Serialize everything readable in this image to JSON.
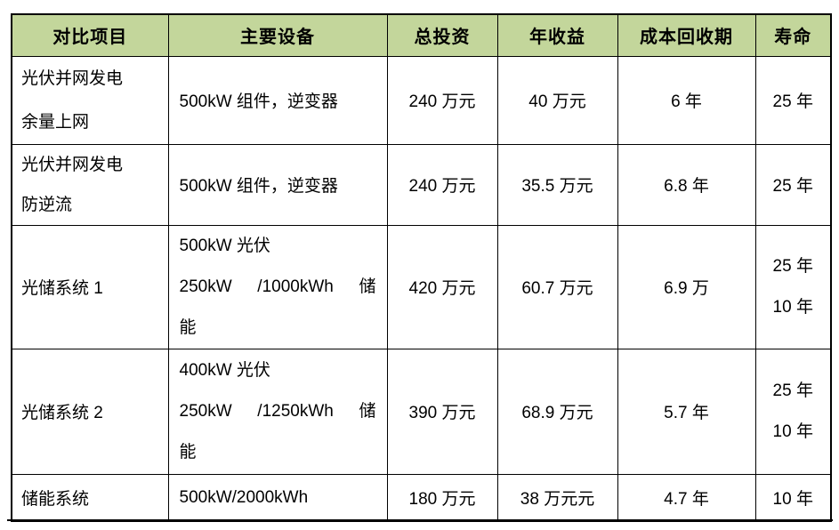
{
  "table": {
    "header_bg": "#c3d69b",
    "border_color": "#000000",
    "header": {
      "cols": [
        "对比项目",
        "主要设备",
        "总投资",
        "年收益",
        "成本回收期",
        "寿命"
      ]
    },
    "rows": [
      {
        "project": [
          "光伏并网发电",
          "余量上网"
        ],
        "equipment": [
          "500kW 组件，逆变器"
        ],
        "investment": "240 万元",
        "income": "40 万元",
        "payback": "6 年",
        "lifespan": [
          "25 年"
        ]
      },
      {
        "project": [
          "光伏并网发电",
          "防逆流"
        ],
        "equipment": [
          "500kW 组件，逆变器"
        ],
        "investment": "240 万元",
        "income": "35.5 万元",
        "payback": "6.8 年",
        "lifespan": [
          "25 年"
        ]
      },
      {
        "project": [
          "光储系统 1"
        ],
        "equipment": [
          "500kW 光伏",
          "250kW /1000kWh 储",
          "能"
        ],
        "investment": "420 万元",
        "income": "60.7 万元",
        "payback": "6.9 万",
        "lifespan": [
          "25 年",
          "10 年"
        ]
      },
      {
        "project": [
          "光储系统 2"
        ],
        "equipment": [
          "400kW 光伏",
          "250kW /1250kWh 储",
          "能"
        ],
        "investment": "390 万元",
        "income": "68.9 万元",
        "payback": "5.7 年",
        "lifespan": [
          "25 年",
          "10 年"
        ]
      },
      {
        "project": [
          "储能系统"
        ],
        "equipment": [
          "500kW/2000kWh"
        ],
        "investment": "180 万元",
        "income": "38 万元元",
        "payback": "4.7 年",
        "lifespan": [
          "10 年"
        ]
      }
    ]
  }
}
